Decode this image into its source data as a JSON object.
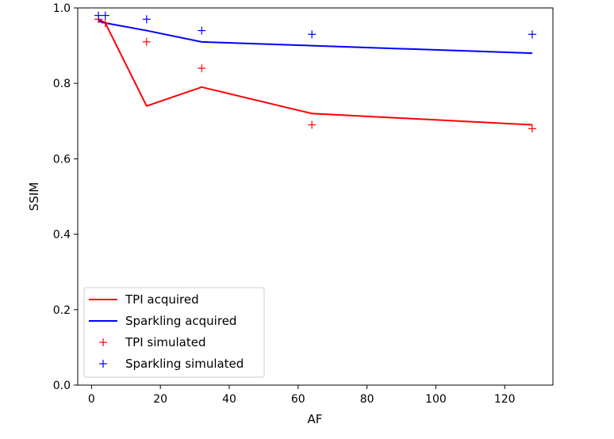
{
  "chart_data": {
    "type": "line",
    "title": "",
    "xlabel": "AF",
    "ylabel": "SSIM",
    "xlim": [
      -4,
      134
    ],
    "ylim": [
      0.0,
      1.0
    ],
    "xticks": [
      0,
      20,
      40,
      60,
      80,
      100,
      120
    ],
    "yticks": [
      0.0,
      0.2,
      0.4,
      0.6,
      0.8,
      1.0
    ],
    "grid": false,
    "legend_position": "lower-left",
    "series": [
      {
        "name": "TPI acquired",
        "kind": "line",
        "color": "#ff0000",
        "x": [
          2,
          4,
          16,
          32,
          64,
          128
        ],
        "y": [
          0.97,
          0.96,
          0.74,
          0.79,
          0.72,
          0.69
        ]
      },
      {
        "name": "Sparkling acquired",
        "kind": "line",
        "color": "#0000ff",
        "x": [
          2,
          4,
          16,
          32,
          64,
          128
        ],
        "y": [
          0.965,
          0.96,
          0.94,
          0.91,
          0.9,
          0.88
        ]
      },
      {
        "name": "TPI simulated",
        "kind": "marker",
        "marker": "+",
        "color": "#ff0000",
        "x": [
          2,
          4,
          16,
          32,
          64,
          128
        ],
        "y": [
          0.97,
          0.96,
          0.91,
          0.84,
          0.69,
          0.68
        ]
      },
      {
        "name": "Sparkling simulated",
        "kind": "marker",
        "marker": "+",
        "color": "#0000ff",
        "x": [
          2,
          4,
          16,
          32,
          64,
          128
        ],
        "y": [
          0.98,
          0.98,
          0.97,
          0.94,
          0.93,
          0.93
        ]
      }
    ]
  }
}
